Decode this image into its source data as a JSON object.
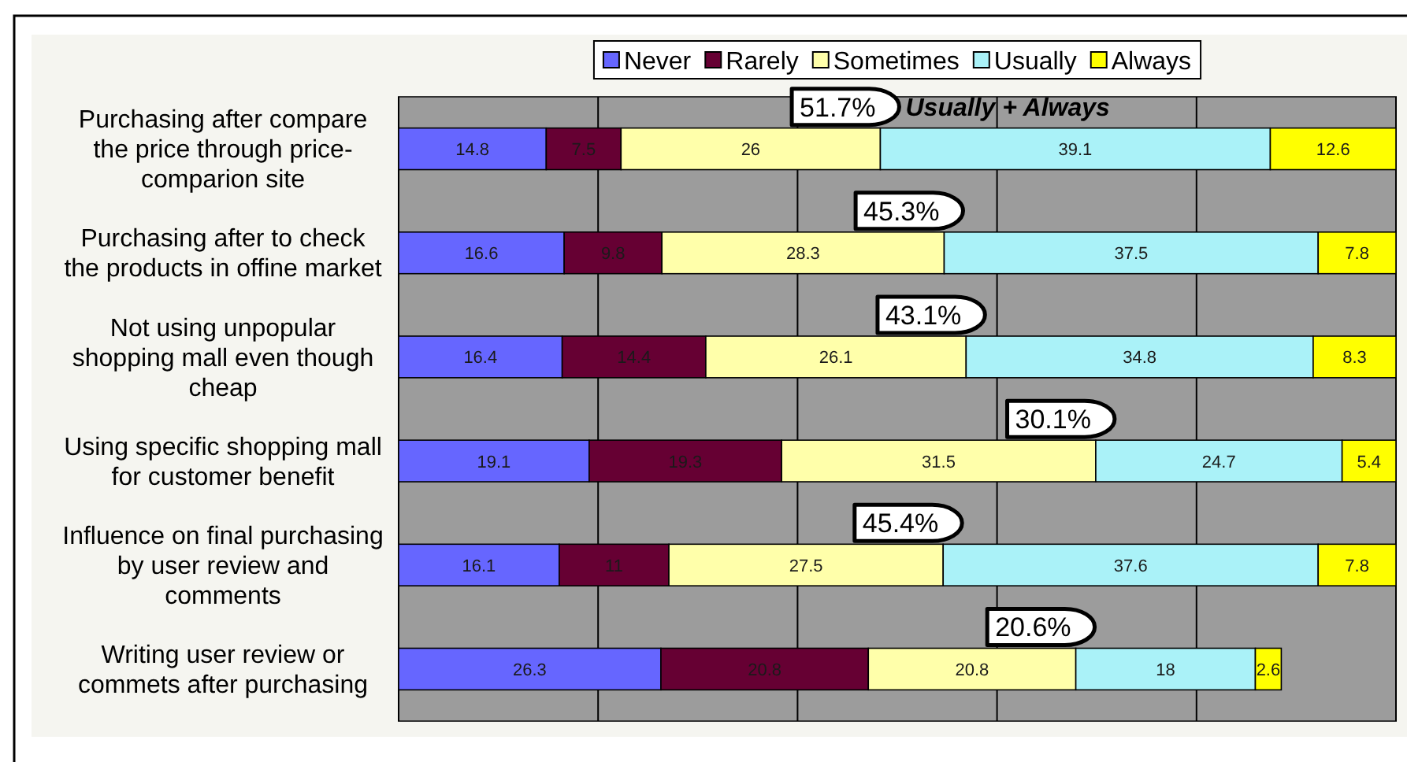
{
  "chart_data": {
    "type": "bar",
    "orientation": "horizontal",
    "stacked": true,
    "categories": [
      "Purchasing after compare\nthe price through price-\ncomparion site",
      "Purchasing after to check\nthe products in offine market",
      "Not using unpopular\nshopping mall even though\ncheap",
      "Using specific shopping mall\nfor customer benefit",
      "Influence on final purchasing\nby user review and\ncomments",
      "Writing user review or\ncommets after purchasing"
    ],
    "series": [
      {
        "name": "Never",
        "color": "#6666ff",
        "values": [
          14.8,
          16.6,
          16.4,
          19.1,
          16.1,
          26.3
        ]
      },
      {
        "name": "Rarely",
        "color": "#660033",
        "values": [
          7.5,
          9.8,
          14.4,
          19.3,
          11,
          20.8
        ]
      },
      {
        "name": "Sometimes",
        "color": "#ffffaa",
        "values": [
          26,
          28.3,
          26.1,
          31.5,
          27.5,
          20.8
        ]
      },
      {
        "name": "Usually",
        "color": "#aaf2f8",
        "values": [
          39.1,
          37.5,
          34.8,
          24.7,
          37.6,
          18
        ]
      },
      {
        "name": "Always",
        "color": "#ffff00",
        "values": [
          12.6,
          7.8,
          8.3,
          5.4,
          7.8,
          2.6
        ]
      }
    ],
    "xlim": [
      0,
      100
    ],
    "xticks": [
      {
        "value": 0,
        "label": null
      },
      {
        "value": 20,
        "label": null
      },
      {
        "value": 40,
        "label": null
      },
      {
        "value": 60,
        "label": null
      },
      {
        "value": 80,
        "label": null
      },
      {
        "value": 100,
        "label": null
      }
    ],
    "grid": "x",
    "legend": "top",
    "data_labels": true,
    "tick_labels": "y",
    "annotations": [
      "51.7%",
      "45.3%",
      "43.1%",
      "30.1%",
      "45.4%",
      "20.6%",
      "Usually + Always"
    ]
  }
}
